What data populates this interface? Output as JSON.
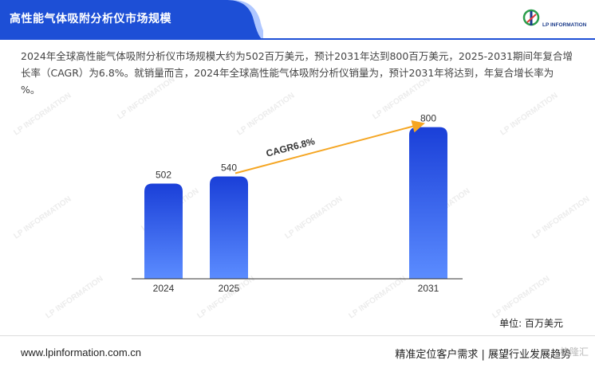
{
  "header": {
    "title": "高性能气体吸附分析仪市场规模",
    "logo_text": "LP INFORMATION",
    "band_color": "#1d4fd6"
  },
  "description": "2024年全球高性能气体吸附分析仪市场规模大约为502百万美元，预计2031年达到800百万美元，2025-2031期间年复合增长率（CAGR）为6.8%。就销量而言，2024年全球高性能气体吸附分析仪销量为，预计2031年将达到，年复合增长率为 %。",
  "chart_data": {
    "type": "bar",
    "categories": [
      "2024",
      "2025",
      "2031"
    ],
    "values": [
      502,
      540,
      800
    ],
    "ylabel": "",
    "xlabel": "",
    "annotation": "CAGR6.8%",
    "bar_color_top": "#1a3fd8",
    "bar_color_bottom": "#5b8cff",
    "arrow_color": "#f5a623"
  },
  "unit_label": "单位: 百万美元",
  "watermark_text": "LP INFORMATION",
  "footer": {
    "website": "www.lpinformation.com.cn",
    "slogan": "精准定位客户需求 | 展望行业发展趋势",
    "badge": "格隆汇"
  }
}
